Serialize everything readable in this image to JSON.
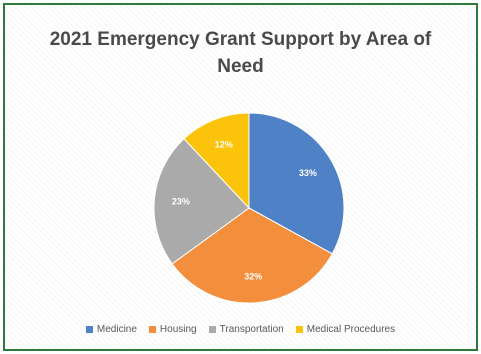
{
  "chart_data": {
    "type": "pie",
    "title_line1": "2021 Emergency Grant Support by Area of",
    "title_line2": "Need",
    "categories": [
      "Medicine",
      "Housing",
      "Transportation",
      "Medical Procedures"
    ],
    "values": [
      33,
      32,
      23,
      12
    ],
    "labels": [
      "33%",
      "32%",
      "23%",
      "12%"
    ],
    "colors": [
      "#4f81c7",
      "#f28e3c",
      "#aaaaaa",
      "#fbc40b"
    ],
    "legend_position": "bottom"
  }
}
